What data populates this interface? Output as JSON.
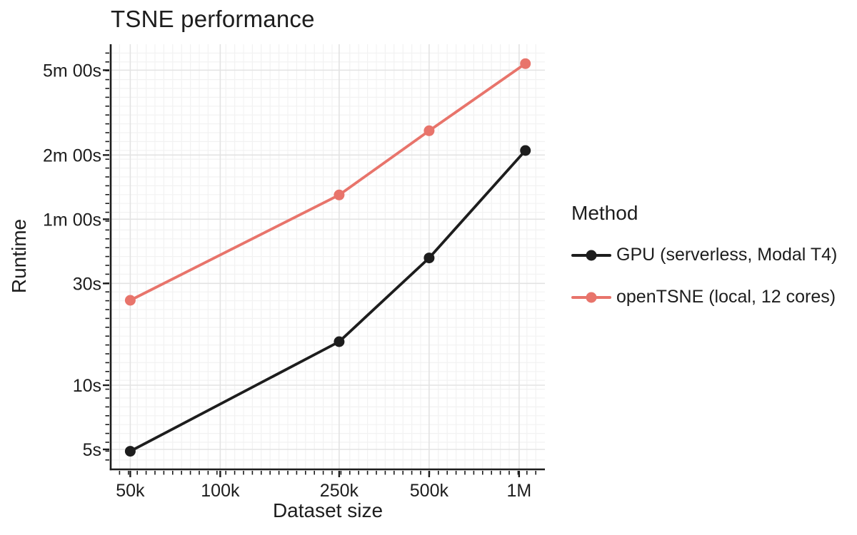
{
  "colors": {
    "background": "#ffffff",
    "text": "#1d1d1d",
    "axis": "#1d1d1d",
    "grid_major": "#e3e3e3",
    "grid_minor": "#f2f2f2",
    "series_gpu": "#1d1d1d",
    "series_opentsne": "#e8746b"
  },
  "chart_data": {
    "type": "line",
    "title": "TSNE performance",
    "xlabel": "Dataset size",
    "ylabel": "Runtime",
    "legend_title": "Method",
    "legend_position": "right",
    "x_scale": "log",
    "y_scale": "log",
    "grid": "major+minor",
    "x_domain": [
      43000,
      1220000
    ],
    "y_domain_seconds": [
      4.03,
      397
    ],
    "x_ticks": [
      {
        "value": 50000,
        "label": "50k"
      },
      {
        "value": 100000,
        "label": "100k"
      },
      {
        "value": 250000,
        "label": "250k"
      },
      {
        "value": 500000,
        "label": "500k"
      },
      {
        "value": 1000000,
        "label": "1M"
      }
    ],
    "y_ticks": [
      {
        "value": 5,
        "label": "5s"
      },
      {
        "value": 10,
        "label": "10s"
      },
      {
        "value": 30,
        "label": "30s"
      },
      {
        "value": 60,
        "label": "1m 00s"
      },
      {
        "value": 120,
        "label": "2m 00s"
      },
      {
        "value": 300,
        "label": "5m 00s"
      }
    ],
    "x_values": [
      50000,
      250000,
      500000,
      1050000
    ],
    "series": [
      {
        "name": "GPU (serverless, Modal T4)",
        "color": "#1d1d1d",
        "runtimes_seconds": [
          4.9,
          16,
          39.5,
          126
        ]
      },
      {
        "name": "openTSNE (local, 12 cores)",
        "color": "#e8746b",
        "runtimes_seconds": [
          25,
          78,
          156,
          322
        ]
      }
    ]
  }
}
